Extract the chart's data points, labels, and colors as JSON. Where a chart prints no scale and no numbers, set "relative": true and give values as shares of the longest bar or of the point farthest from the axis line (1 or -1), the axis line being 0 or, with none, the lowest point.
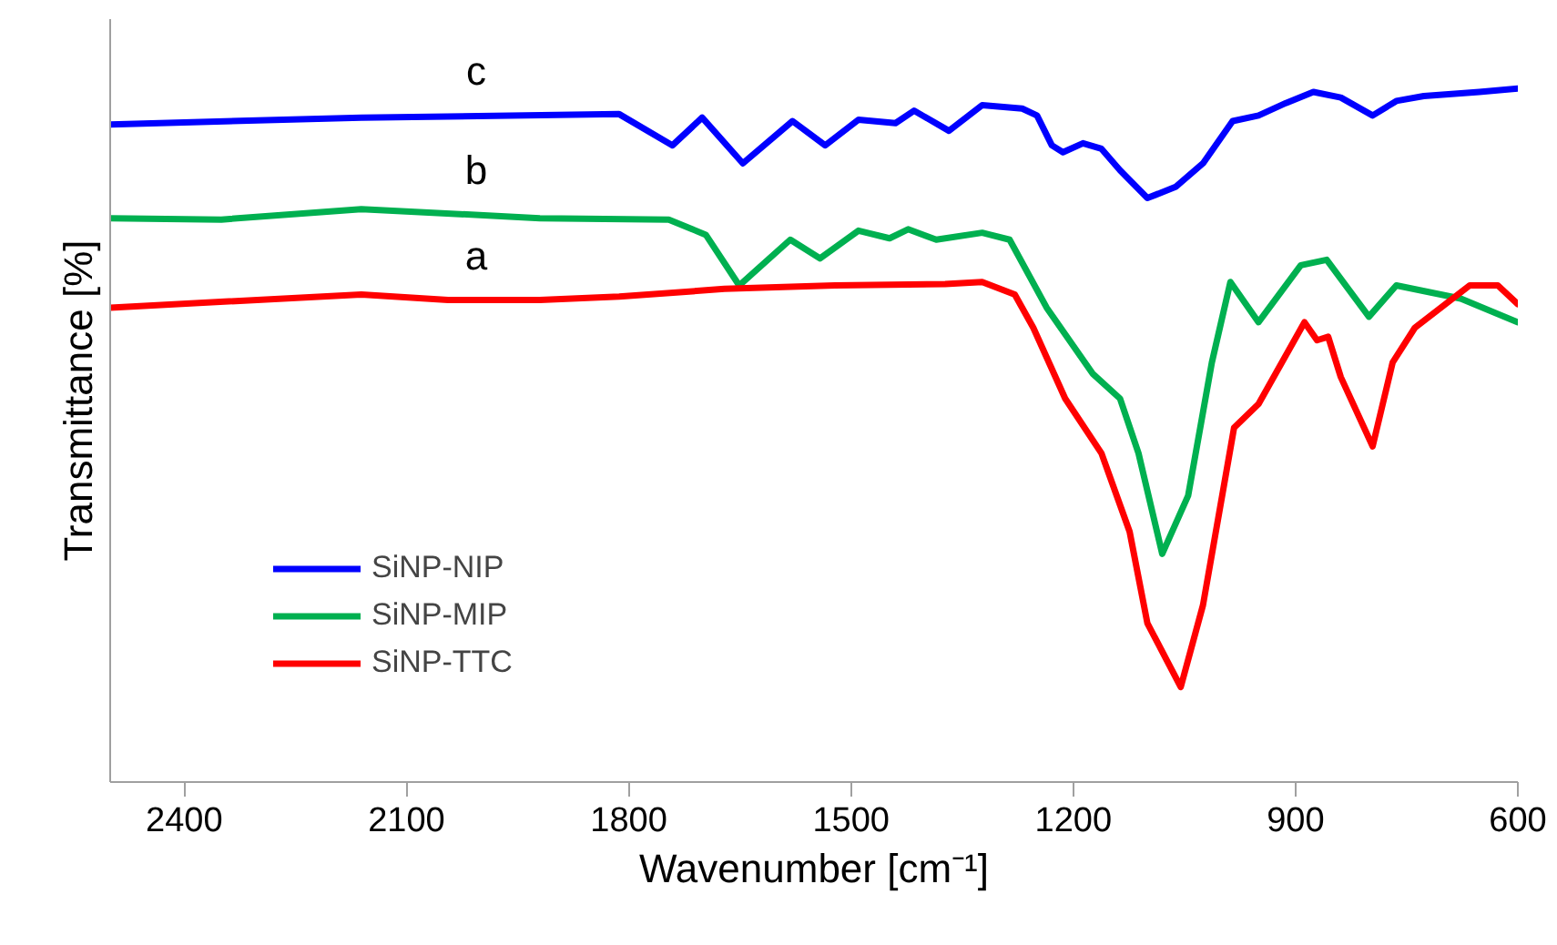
{
  "chart_data": {
    "type": "line",
    "relative": true,
    "xlabel": "Wavenumber [cm⁻¹]",
    "ylabel": "Transmittance [%]",
    "xlim": [
      2500,
      600
    ],
    "xticks": [
      2400,
      2100,
      1800,
      1500,
      1200,
      900,
      600
    ],
    "grid": false,
    "legend": "bottom left",
    "marker": "none",
    "line_style": "solid",
    "series": [
      {
        "name": "SiNP-NIP",
        "color": "#0000ff",
        "x": [
          2500,
          2161,
          1813,
          1741,
          1701,
          1646,
          1579,
          1535,
          1490,
          1440,
          1415,
          1368,
          1323,
          1269,
          1249,
          1229,
          1214,
          1187,
          1162,
          1137,
          1100,
          1062,
          1025,
          985,
          950,
          913,
          876,
          839,
          796,
          764,
          727,
          652,
          600
        ],
        "values": [
          0.948,
          0.958,
          0.963,
          0.918,
          0.958,
          0.892,
          0.953,
          0.918,
          0.955,
          0.95,
          0.968,
          0.939,
          0.976,
          0.971,
          0.961,
          0.918,
          0.908,
          0.921,
          0.913,
          0.882,
          0.842,
          0.858,
          0.892,
          0.953,
          0.961,
          0.979,
          0.995,
          0.987,
          0.961,
          0.982,
          0.989,
          0.995,
          1.0
        ]
      },
      {
        "name": "SiNP-MIP",
        "color": "#00b050",
        "x": [
          2500,
          2350,
          2161,
          1920,
          1746,
          1696,
          1651,
          1582,
          1542,
          1490,
          1448,
          1423,
          1385,
          1323,
          1286,
          1236,
          1174,
          1137,
          1112,
          1080,
          1045,
          1013,
          988,
          950,
          893,
          858,
          801,
          764,
          677,
          600
        ],
        "values": [
          0.813,
          0.811,
          0.826,
          0.813,
          0.811,
          0.789,
          0.716,
          0.782,
          0.755,
          0.795,
          0.784,
          0.797,
          0.782,
          0.792,
          0.782,
          0.684,
          0.589,
          0.553,
          0.474,
          0.329,
          0.413,
          0.605,
          0.721,
          0.663,
          0.745,
          0.753,
          0.671,
          0.716,
          0.697,
          0.663
        ]
      },
      {
        "name": "SiNP-TTC",
        "color": "#ff0000",
        "x": [
          2500,
          2161,
          2044,
          1920,
          1813,
          1671,
          1522,
          1373,
          1323,
          1279,
          1254,
          1211,
          1162,
          1124,
          1100,
          1055,
          1025,
          983,
          950,
          888,
          871,
          856,
          839,
          796,
          769,
          739,
          665,
          627,
          600
        ],
        "values": [
          0.684,
          0.703,
          0.695,
          0.695,
          0.7,
          0.711,
          0.716,
          0.718,
          0.721,
          0.703,
          0.655,
          0.553,
          0.474,
          0.361,
          0.229,
          0.137,
          0.255,
          0.511,
          0.545,
          0.663,
          0.637,
          0.642,
          0.584,
          0.484,
          0.605,
          0.655,
          0.716,
          0.716,
          0.689
        ]
      }
    ],
    "annotations": [
      "c",
      "b",
      "a"
    ]
  }
}
